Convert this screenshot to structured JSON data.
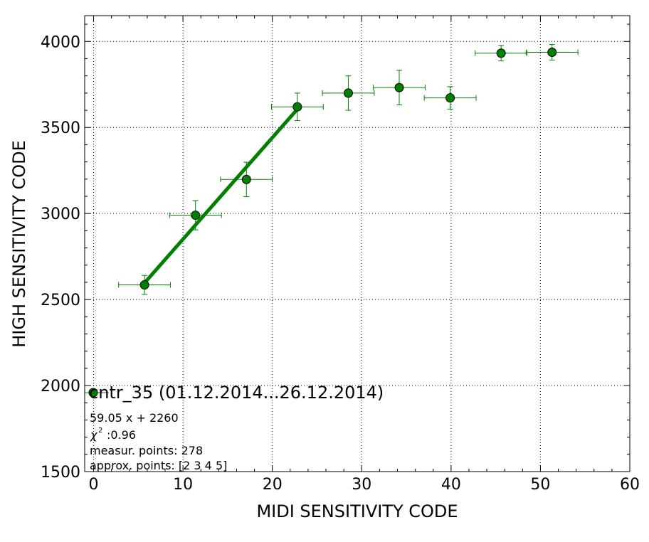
{
  "chart_data": {
    "type": "scatter",
    "xlabel": "MIDI SENSITIVITY CODE",
    "ylabel": "HIGH SENSITIVITY CODE",
    "xlim": [
      -1,
      60
    ],
    "ylim": [
      1500,
      4150
    ],
    "x_ticks": [
      0,
      10,
      20,
      30,
      40,
      50,
      60
    ],
    "y_ticks": [
      1500,
      2000,
      2500,
      3000,
      3500,
      4000
    ],
    "x_tick_labels": [
      "0",
      "10",
      "20",
      "30",
      "40",
      "50",
      "60"
    ],
    "y_tick_labels": [
      "1500",
      "2000",
      "2500",
      "3000",
      "3500",
      "4000"
    ],
    "grid": true,
    "legend_position": "bottom-left",
    "series": [
      {
        "name": "cntr_35 (01.12.2014...26.12.2014)",
        "color": "#008000",
        "marker": "circle",
        "points": [
          {
            "x": 5.7,
            "y": 2585,
            "xerr": 2.9,
            "yerr": 55
          },
          {
            "x": 11.4,
            "y": 2990,
            "xerr": 2.9,
            "yerr": 85
          },
          {
            "x": 17.1,
            "y": 3198,
            "xerr": 2.9,
            "yerr": 100
          },
          {
            "x": 22.8,
            "y": 3620,
            "xerr": 2.9,
            "yerr": 80
          },
          {
            "x": 28.5,
            "y": 3700,
            "xerr": 2.9,
            "yerr": 100
          },
          {
            "x": 34.2,
            "y": 3732,
            "xerr": 2.9,
            "yerr": 100
          },
          {
            "x": 39.9,
            "y": 3672,
            "xerr": 2.9,
            "yerr": 65
          },
          {
            "x": 45.6,
            "y": 3932,
            "xerr": 2.9,
            "yerr": 45
          },
          {
            "x": 51.3,
            "y": 3937,
            "xerr": 2.9,
            "yerr": 45
          }
        ]
      }
    ],
    "fit": {
      "slope": 59.05,
      "intercept": 2260,
      "x_range": [
        5.7,
        22.8
      ],
      "color": "#008000"
    },
    "annotations": {
      "fit_equation": "59.05 x + 2260",
      "chi2_symbol": "χ",
      "chi2_value": ":0.96",
      "measured_points": "measur. points: 278",
      "approx_points": "approx. points: [2 3 4 5]"
    }
  }
}
